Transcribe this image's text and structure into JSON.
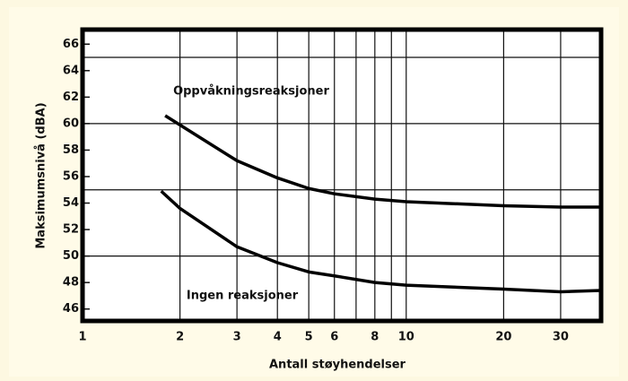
{
  "chart_data": {
    "type": "line",
    "x_label": "Antall støyhendelser",
    "y_label": "Maksimumsnivå (dBA)",
    "log_x": true,
    "xlim": [
      1,
      40
    ],
    "ylim": [
      45.1,
      67.1
    ],
    "xticks": [
      1,
      2,
      3,
      4,
      5,
      6,
      8,
      10,
      20,
      30
    ],
    "yticks": [
      46,
      48,
      50,
      52,
      54,
      56,
      58,
      60,
      62,
      64,
      66
    ],
    "x_grid": [
      2,
      3,
      4,
      5,
      6,
      7,
      8,
      9,
      10,
      20,
      30
    ],
    "y_grid": [
      50,
      55,
      60,
      65
    ],
    "series": [
      {
        "name": "Oppvåkningsreaksjoner",
        "color": "#000000",
        "x": [
          1.8,
          2,
          3,
          4,
          5,
          6,
          8,
          10,
          20,
          30,
          40
        ],
        "values": [
          60.6,
          59.9,
          57.2,
          55.9,
          55.1,
          54.7,
          54.3,
          54.1,
          53.8,
          53.7,
          53.7
        ]
      },
      {
        "name": "Ingen reaksjoner",
        "color": "#000000",
        "x": [
          1.75,
          2,
          3,
          4,
          5,
          6,
          8,
          10,
          20,
          30,
          40
        ],
        "values": [
          54.9,
          53.6,
          50.7,
          49.5,
          48.8,
          48.5,
          48.0,
          47.8,
          47.5,
          47.3,
          47.4
        ]
      }
    ]
  }
}
